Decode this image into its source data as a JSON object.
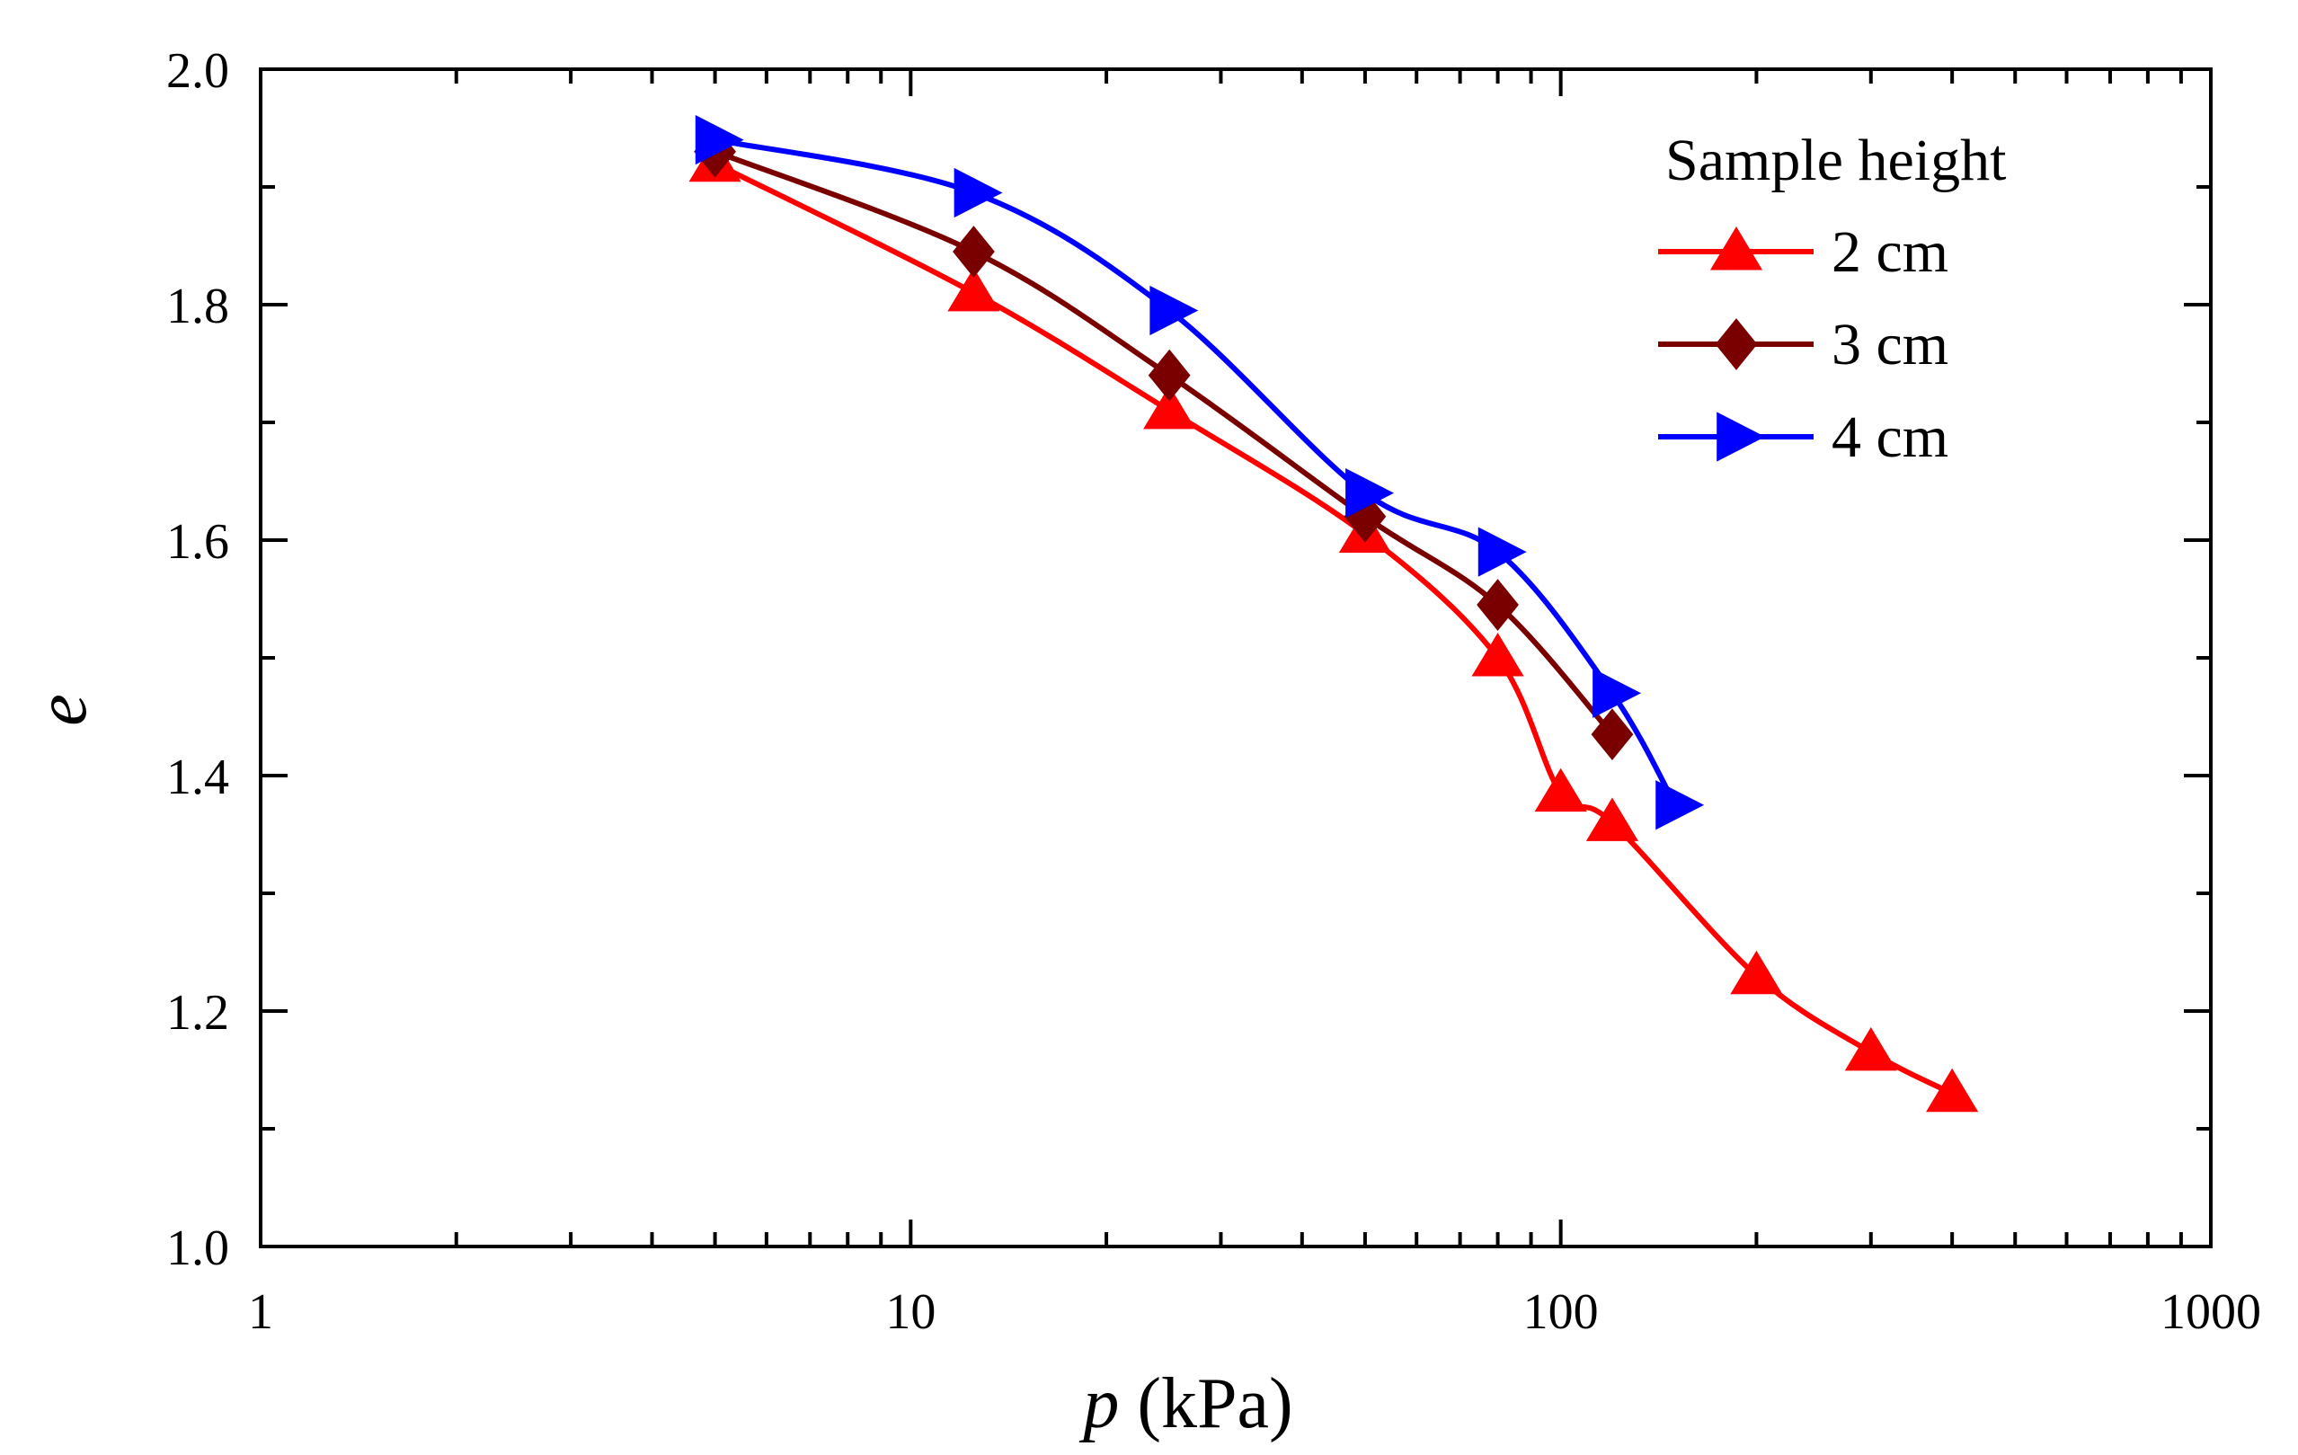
{
  "chart_data": {
    "type": "line",
    "title": "",
    "xlabel_var": "p",
    "xlabel_unit": " (kPa)",
    "ylabel": "e",
    "xscale": "log",
    "xlim": [
      1,
      1000
    ],
    "ylim": [
      1.0,
      2.0
    ],
    "x_ticks": [
      "1",
      "10",
      "100",
      "1000"
    ],
    "y_ticks": [
      "1.0",
      "1.2",
      "1.4",
      "1.6",
      "1.8",
      "2.0"
    ],
    "legend": {
      "title": "Sample height",
      "position": "top-right"
    },
    "series": [
      {
        "name": "2 cm",
        "color": "#ff0000",
        "marker": "triangle-up",
        "x": [
          5,
          12.5,
          25,
          50,
          80,
          100,
          120,
          200,
          300,
          400
        ],
        "y": [
          1.92,
          1.81,
          1.71,
          1.605,
          1.5,
          1.385,
          1.36,
          1.23,
          1.165,
          1.13
        ]
      },
      {
        "name": "3 cm",
        "color": "#7a0000",
        "marker": "diamond",
        "x": [
          5,
          12.5,
          25,
          50,
          80,
          120
        ],
        "y": [
          1.93,
          1.845,
          1.74,
          1.62,
          1.545,
          1.435
        ]
      },
      {
        "name": "4 cm",
        "color": "#0000ff",
        "marker": "triangle-right",
        "x": [
          5,
          12.5,
          25,
          50,
          80,
          120,
          150
        ],
        "y": [
          1.94,
          1.895,
          1.795,
          1.64,
          1.59,
          1.47,
          1.375
        ]
      }
    ]
  }
}
